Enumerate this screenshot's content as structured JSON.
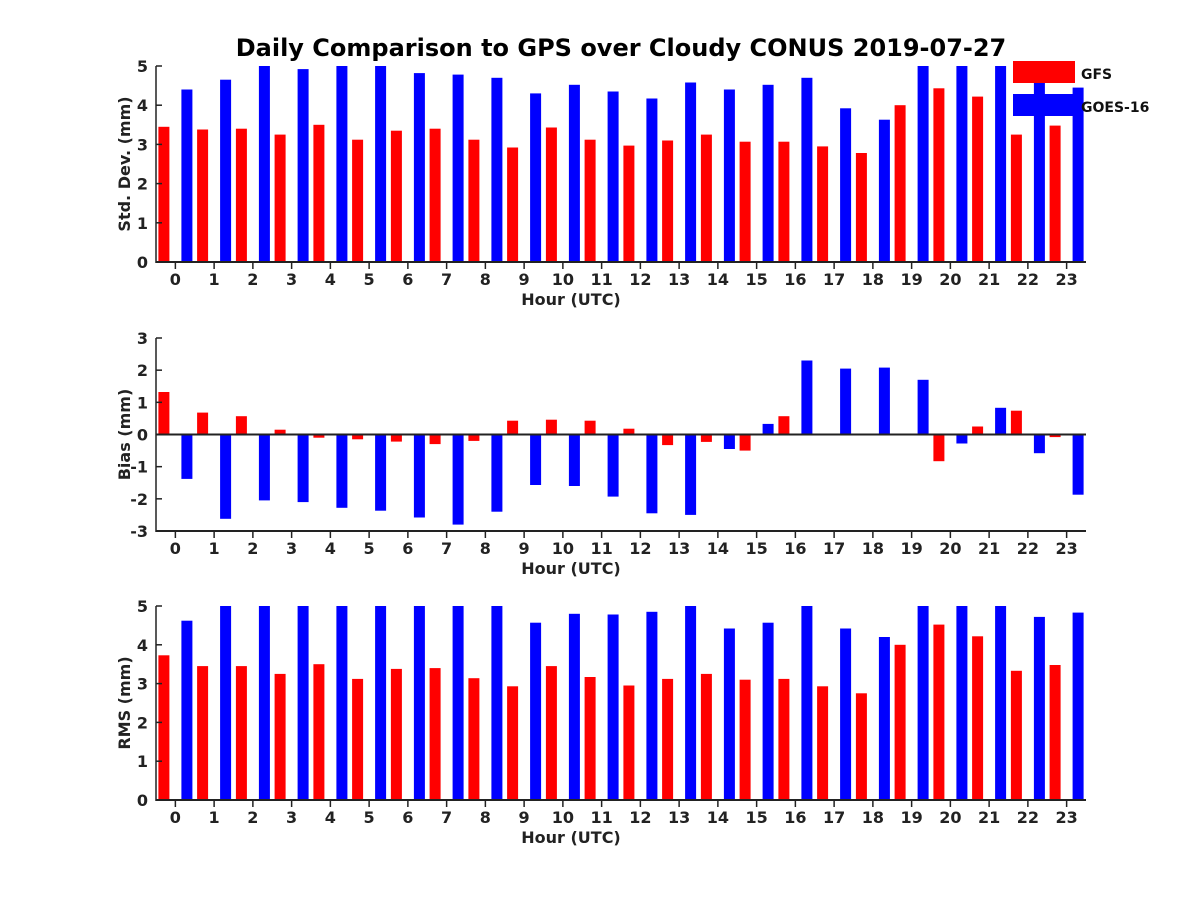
{
  "chart_data": {
    "type": "bar",
    "title": "Daily Comparison to GPS over Cloudy CONUS 2019-07-27",
    "legend": {
      "placement": "top-right",
      "entries": [
        "GFS",
        "GOES-16"
      ]
    },
    "colors": {
      "GFS": "#ff0000",
      "GOES-16": "#0000ff"
    },
    "categories": [
      "0",
      "1",
      "2",
      "3",
      "4",
      "5",
      "6",
      "7",
      "8",
      "9",
      "10",
      "11",
      "12",
      "13",
      "14",
      "15",
      "16",
      "17",
      "18",
      "19",
      "20",
      "21",
      "22",
      "23"
    ],
    "panels": [
      {
        "xlabel": "Hour (UTC)",
        "ylabel": "Std. Dev. (mm)",
        "ylim": [
          0,
          5
        ],
        "yticks": [
          "0",
          "1",
          "2",
          "3",
          "4",
          "5"
        ],
        "grid": false,
        "series": [
          {
            "name": "GFS",
            "values": [
              3.45,
              3.38,
              3.4,
              3.25,
              3.5,
              3.12,
              3.35,
              3.4,
              3.12,
              2.92,
              3.43,
              3.12,
              2.97,
              3.1,
              3.25,
              3.07,
              3.07,
              2.95,
              2.78,
              4.0,
              4.43,
              4.22,
              3.25,
              3.48
            ]
          },
          {
            "name": "GOES-16",
            "values": [
              4.4,
              4.65,
              5.0,
              4.92,
              5.0,
              5.0,
              4.82,
              4.78,
              4.7,
              4.3,
              4.52,
              4.35,
              4.17,
              4.58,
              4.4,
              4.52,
              4.7,
              3.92,
              3.63,
              5.0,
              5.0,
              5.0,
              4.67,
              4.45
            ]
          }
        ]
      },
      {
        "xlabel": "Hour (UTC)",
        "ylabel": "Bias (mm)",
        "ylim": [
          -3,
          3
        ],
        "yticks": [
          "-3",
          "-2",
          "-1",
          "0",
          "1",
          "2",
          "3"
        ],
        "grid": false,
        "series": [
          {
            "name": "GFS",
            "values": [
              1.32,
              0.68,
              0.57,
              0.15,
              -0.1,
              -0.15,
              -0.22,
              -0.3,
              -0.2,
              0.43,
              0.46,
              0.43,
              0.18,
              -0.33,
              -0.23,
              -0.5,
              0.57,
              0.03,
              0.0,
              0.03,
              -0.83,
              0.25,
              0.74,
              -0.08
            ]
          },
          {
            "name": "GOES-16",
            "values": [
              -1.38,
              -2.62,
              -2.05,
              -2.1,
              -2.28,
              -2.37,
              -2.58,
              -2.8,
              -2.4,
              -1.57,
              -1.6,
              -1.93,
              -2.45,
              -2.5,
              -0.45,
              0.33,
              2.3,
              2.05,
              2.08,
              1.7,
              -0.28,
              0.83,
              -0.58,
              -1.87
            ]
          }
        ]
      },
      {
        "xlabel": "Hour (UTC)",
        "ylabel": "RMS (mm)",
        "ylim": [
          0,
          5
        ],
        "yticks": [
          "0",
          "1",
          "2",
          "3",
          "4",
          "5"
        ],
        "grid": false,
        "series": [
          {
            "name": "GFS",
            "values": [
              3.73,
              3.45,
              3.45,
              3.25,
              3.5,
              3.12,
              3.38,
              3.4,
              3.14,
              2.93,
              3.45,
              3.17,
              2.95,
              3.12,
              3.25,
              3.1,
              3.12,
              2.93,
              2.75,
              4.0,
              4.52,
              4.22,
              3.33,
              3.48
            ]
          },
          {
            "name": "GOES-16",
            "values": [
              4.62,
              5.0,
              5.0,
              5.0,
              5.0,
              5.0,
              5.0,
              5.0,
              5.0,
              4.57,
              4.8,
              4.78,
              4.85,
              5.0,
              4.42,
              4.57,
              5.0,
              4.42,
              4.2,
              5.0,
              5.0,
              5.0,
              4.72,
              4.83
            ]
          }
        ]
      }
    ]
  }
}
